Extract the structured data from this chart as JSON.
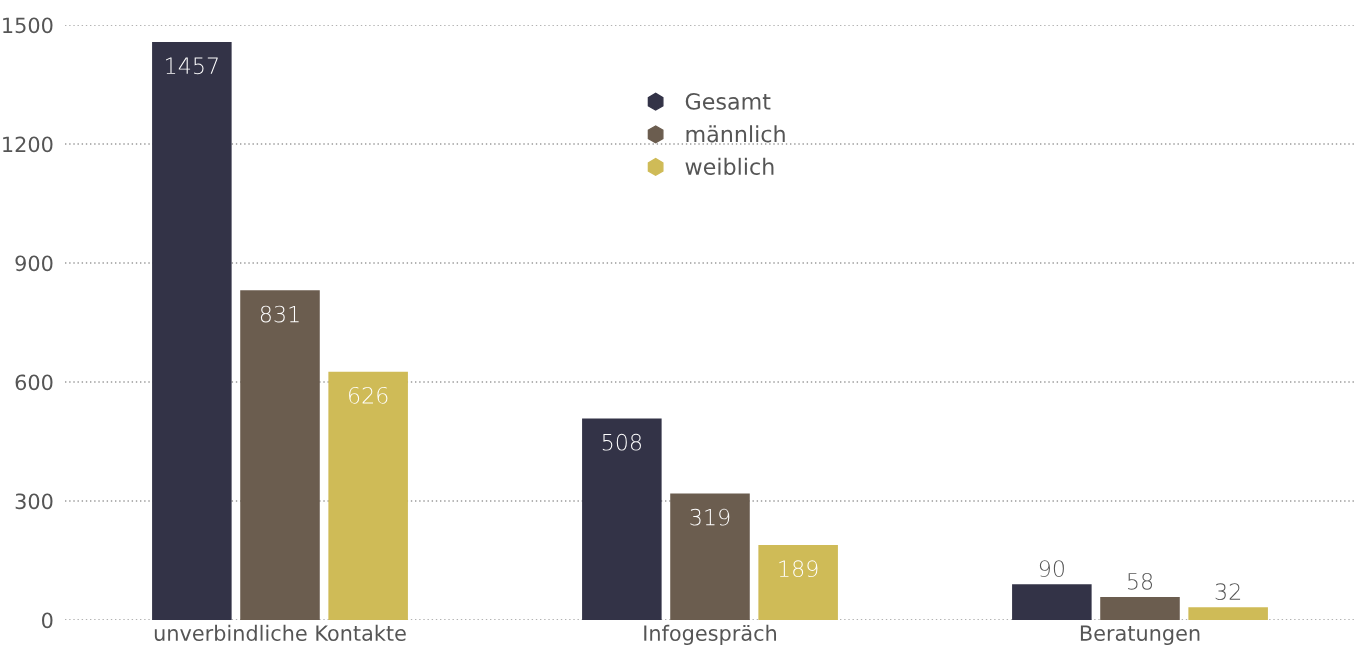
{
  "chart_data": {
    "type": "bar",
    "categories": [
      "unverbindliche Kontakte",
      "Infogespräch",
      "Beratungen"
    ],
    "series": [
      {
        "name": "Gesamt",
        "color": "#333347",
        "values": [
          1457,
          508,
          90
        ]
      },
      {
        "name": "männlich",
        "color": "#6b5d4f",
        "values": [
          831,
          319,
          58
        ]
      },
      {
        "name": "weiblich",
        "color": "#cfbb57",
        "values": [
          626,
          189,
          32
        ]
      }
    ],
    "ylim": [
      0,
      1500
    ],
    "yticks": [
      0,
      300,
      600,
      900,
      1200,
      1500
    ],
    "grid": "y",
    "legend": "top",
    "marker": "hexagon",
    "data_labels": true
  }
}
